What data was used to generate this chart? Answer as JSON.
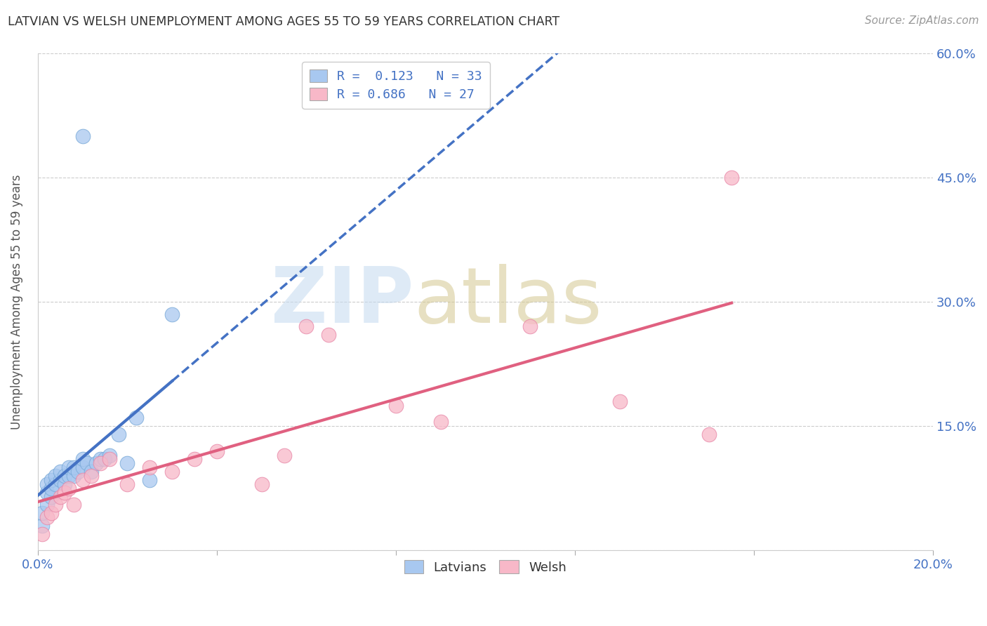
{
  "title": "LATVIAN VS WELSH UNEMPLOYMENT AMONG AGES 55 TO 59 YEARS CORRELATION CHART",
  "source": "Source: ZipAtlas.com",
  "ylabel": "Unemployment Among Ages 55 to 59 years",
  "xlim": [
    0.0,
    0.2
  ],
  "ylim": [
    0.0,
    0.6
  ],
  "xticks": [
    0.0,
    0.04,
    0.08,
    0.12,
    0.16,
    0.2
  ],
  "yticks": [
    0.0,
    0.15,
    0.3,
    0.45,
    0.6
  ],
  "latvian_color": "#a8c8f0",
  "latvian_edge_color": "#7aaad8",
  "welsh_color": "#f8b8c8",
  "welsh_edge_color": "#e888a8",
  "latvian_line_color": "#4472c4",
  "welsh_line_color": "#e06080",
  "latvian_R": 0.123,
  "latvian_N": 33,
  "welsh_R": 0.686,
  "welsh_N": 27,
  "background_color": "#ffffff",
  "grid_color": "#cccccc",
  "latvian_x": [
    0.001,
    0.001,
    0.002,
    0.002,
    0.002,
    0.003,
    0.003,
    0.003,
    0.004,
    0.004,
    0.005,
    0.005,
    0.006,
    0.006,
    0.007,
    0.007,
    0.008,
    0.008,
    0.009,
    0.01,
    0.01,
    0.011,
    0.012,
    0.013,
    0.014,
    0.015,
    0.016,
    0.018,
    0.02,
    0.022,
    0.025,
    0.03,
    0.01
  ],
  "latvian_y": [
    0.03,
    0.045,
    0.055,
    0.07,
    0.08,
    0.065,
    0.075,
    0.085,
    0.08,
    0.09,
    0.085,
    0.095,
    0.08,
    0.09,
    0.09,
    0.1,
    0.09,
    0.1,
    0.095,
    0.1,
    0.11,
    0.105,
    0.095,
    0.105,
    0.11,
    0.11,
    0.115,
    0.14,
    0.105,
    0.16,
    0.085,
    0.285,
    0.5
  ],
  "welsh_x": [
    0.001,
    0.002,
    0.003,
    0.004,
    0.005,
    0.006,
    0.007,
    0.008,
    0.01,
    0.012,
    0.014,
    0.016,
    0.02,
    0.025,
    0.03,
    0.035,
    0.04,
    0.05,
    0.055,
    0.06,
    0.065,
    0.08,
    0.09,
    0.11,
    0.13,
    0.15,
    0.155
  ],
  "welsh_y": [
    0.02,
    0.04,
    0.045,
    0.055,
    0.065,
    0.07,
    0.075,
    0.055,
    0.085,
    0.09,
    0.105,
    0.11,
    0.08,
    0.1,
    0.095,
    0.11,
    0.12,
    0.08,
    0.115,
    0.27,
    0.26,
    0.175,
    0.155,
    0.27,
    0.18,
    0.14,
    0.45
  ]
}
